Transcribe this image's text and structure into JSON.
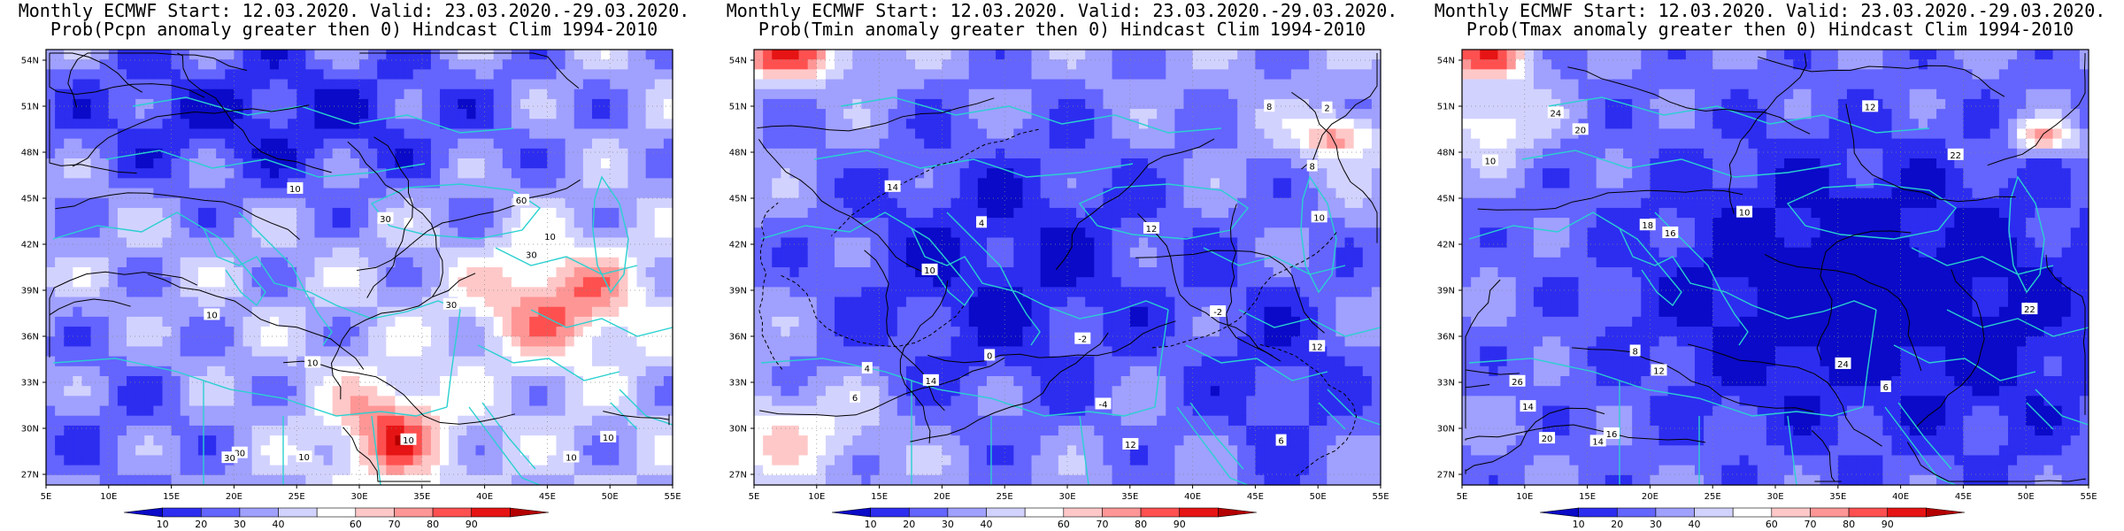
{
  "panels": [
    {
      "title_line1": "Monthly ECMWF Start: 12.03.2020. Valid: 23.03.2020.-29.03.2020.",
      "title_line2": "Prob(Pcpn anomaly greater then 0) Hindcast Clim 1994-2010",
      "variable": "Pcpn",
      "contour_labels": [
        "10",
        "10",
        "10",
        "10",
        "10",
        "10",
        "10",
        "30",
        "30",
        "30",
        "30",
        "60",
        "10",
        "30"
      ]
    },
    {
      "title_line1": "Monthly ECMWF Start: 12.03.2020. Valid: 23.03.2020.-29.03.2020.",
      "title_line2": "Prob(Tmin anomaly greater then 0) Hindcast Clim 1994-2010",
      "variable": "Tmin",
      "contour_labels": [
        "-2",
        "-4",
        "2",
        "4",
        "6",
        "8",
        "10",
        "12",
        "14",
        "10",
        "12",
        "6",
        "-2",
        "0",
        "4",
        "8",
        "12",
        "14"
      ]
    },
    {
      "title_line1": "Monthly ECMWF Start: 12.03.2020. Valid: 23.03.2020.-29.03.2020.",
      "title_line2": "Prob(Tmax anomaly greater then 0) Hindcast Clim 1994-2010",
      "variable": "Tmax",
      "contour_labels": [
        "6",
        "8",
        "10",
        "12",
        "14",
        "16",
        "18",
        "20",
        "22",
        "24",
        "26",
        "10",
        "12",
        "14",
        "16",
        "20",
        "22",
        "24"
      ]
    }
  ],
  "map": {
    "lat_ticks": [
      "54N",
      "51N",
      "48N",
      "45N",
      "42N",
      "39N",
      "36N",
      "33N",
      "30N",
      "27N"
    ],
    "lon_ticks": [
      "5E",
      "10E",
      "15E",
      "20E",
      "25E",
      "30E",
      "35E",
      "40E",
      "45E",
      "50E",
      "55E"
    ]
  },
  "colorbar": {
    "labels": [
      "10",
      "20",
      "30",
      "40",
      "60",
      "70",
      "80",
      "90"
    ],
    "colors": [
      "#0a0ac8",
      "#2d2df0",
      "#6464ff",
      "#a0a0ff",
      "#d2d2ff",
      "#ffffff",
      "#ffc8c8",
      "#ff9696",
      "#ff5050",
      "#e61414",
      "#b40000"
    ]
  }
}
